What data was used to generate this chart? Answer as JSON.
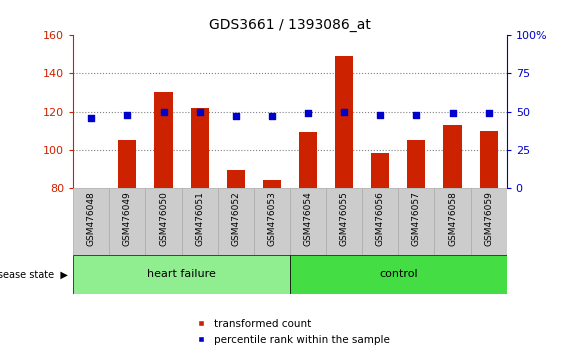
{
  "title": "GDS3661 / 1393086_at",
  "samples": [
    "GSM476048",
    "GSM476049",
    "GSM476050",
    "GSM476051",
    "GSM476052",
    "GSM476053",
    "GSM476054",
    "GSM476055",
    "GSM476056",
    "GSM476057",
    "GSM476058",
    "GSM476059"
  ],
  "transformed_counts": [
    80,
    105,
    130,
    122,
    89,
    84,
    109,
    149,
    98,
    105,
    113,
    110
  ],
  "percentile_ranks": [
    46,
    48,
    50,
    50,
    47,
    47,
    49,
    50,
    48,
    48,
    49,
    49
  ],
  "bar_color": "#cc2200",
  "dot_color": "#0000cc",
  "ylim_left": [
    80,
    160
  ],
  "ylim_right": [
    0,
    100
  ],
  "yticks_left": [
    80,
    100,
    120,
    140,
    160
  ],
  "yticks_right": [
    0,
    25,
    50,
    75,
    100
  ],
  "yticklabels_right": [
    "0",
    "25",
    "50",
    "75",
    "100%"
  ],
  "groups": [
    {
      "label": "heart failure",
      "color": "#90ee90",
      "start": 0,
      "end": 6
    },
    {
      "label": "control",
      "color": "#44dd44",
      "start": 6,
      "end": 12
    }
  ],
  "disease_state_label": "disease state",
  "legend_items": [
    {
      "label": "transformed count",
      "color": "#cc2200"
    },
    {
      "label": "percentile rank within the sample",
      "color": "#0000cc"
    }
  ],
  "tick_label_color_left": "#cc2200",
  "tick_label_color_right": "#0000cc",
  "bar_width": 0.5,
  "dot_size": 18,
  "gray_cell_color": "#cccccc",
  "gray_cell_edge": "#aaaaaa"
}
